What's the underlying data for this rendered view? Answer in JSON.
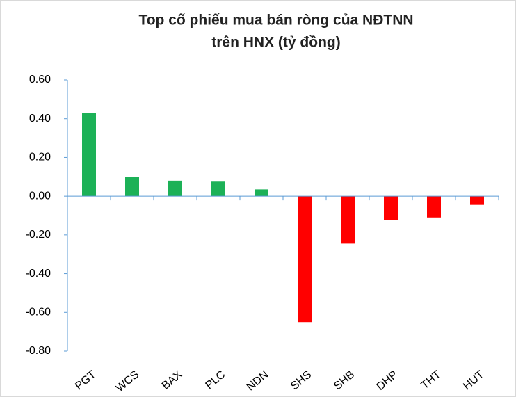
{
  "chart_data": {
    "type": "bar",
    "title": [
      "Top cổ phiếu mua bán ròng của NĐTNN",
      "trên HNX (tỷ đồng)"
    ],
    "categories": [
      "PGT",
      "WCS",
      "BAX",
      "PLC",
      "NDN",
      "SHS",
      "SHB",
      "DHP",
      "THT",
      "HUT"
    ],
    "values": [
      0.43,
      0.1,
      0.08,
      0.075,
      0.035,
      -0.65,
      -0.245,
      -0.125,
      -0.11,
      -0.045
    ],
    "color_positive": "#1cb157",
    "color_negative": "#ff0000",
    "ylim": [
      -0.8,
      0.6
    ],
    "yticks": [
      {
        "value": -0.8,
        "label": "-0.80"
      },
      {
        "value": -0.6,
        "label": "-0.60"
      },
      {
        "value": -0.4,
        "label": "-0.40"
      },
      {
        "value": -0.2,
        "label": "-0.20"
      },
      {
        "value": 0,
        "label": "0.00"
      },
      {
        "value": 0.2,
        "label": "0.20"
      },
      {
        "value": 0.4,
        "label": "0.40"
      },
      {
        "value": 0.6,
        "label": "0.60"
      }
    ],
    "grid": false
  }
}
